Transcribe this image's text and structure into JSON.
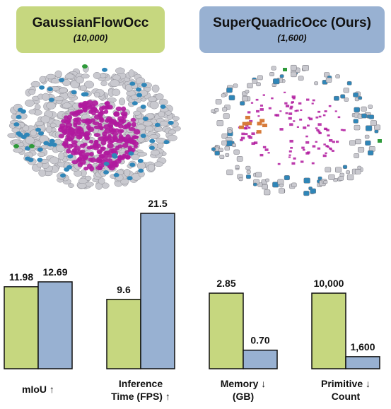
{
  "panels": {
    "left": {
      "title": "GaussianFlowOcc",
      "subtitle": "(10,000)"
    },
    "right": {
      "title": "SuperQuadricOcc (Ours)",
      "subtitle": "(1,600)"
    }
  },
  "colors": {
    "gaussianflowocc": "#c6d77f",
    "superquadricocc": "#98b1d2",
    "magenta": "#b0199d",
    "grey": "#c9c9cf",
    "blue": "#2f86b8"
  },
  "chart_data": {
    "type": "bar",
    "categories": [
      {
        "lines": [
          "mIoU ↑"
        ],
        "values": [
          "11.98",
          "12.69"
        ]
      },
      {
        "lines": [
          "Inference",
          "Time (FPS) ↑"
        ],
        "values": [
          "9.6",
          "21.5"
        ]
      },
      {
        "lines": [
          "Memory ↓",
          "(GB)"
        ],
        "values": [
          "2.85",
          "0.70"
        ]
      },
      {
        "lines": [
          "Primitive ↓",
          "Count"
        ],
        "values": [
          "10,000",
          "1,600"
        ]
      }
    ],
    "series": [
      {
        "values": [
          11.98,
          9.6,
          2.85,
          10000
        ]
      },
      {
        "values": [
          12.69,
          21.5,
          0.7,
          1600
        ]
      }
    ],
    "note": "each metric group has its own independent scale; relative bar heights within a group reflect values",
    "grid": false,
    "legend": "none"
  }
}
